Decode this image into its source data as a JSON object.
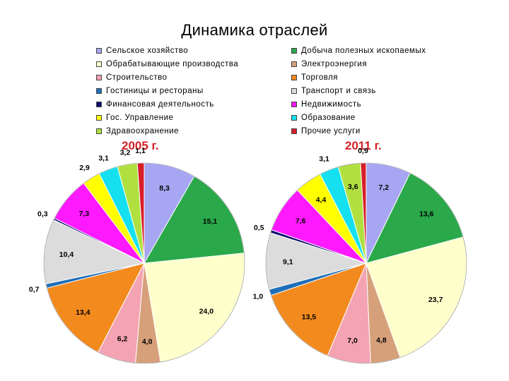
{
  "page": {
    "title": "Динамика отраслей"
  },
  "legend": [
    {
      "label": "Сельское хозяйство",
      "color": "#a6a6f2"
    },
    {
      "label": "Обрабатывающие производства",
      "color": "#ffffcc"
    },
    {
      "label": "Строительство",
      "color": "#f4a3b2"
    },
    {
      "label": "Гостиницы и рестораны",
      "color": "#1f6fb8"
    },
    {
      "label": "Финансовая деятельность",
      "color": "#0c0c70"
    },
    {
      "label": "Гос. Управление",
      "color": "#ffff00"
    },
    {
      "label": "Здравоохранение",
      "color": "#b0e040"
    },
    {
      "label": "Добыча полезных ископаемых",
      "color": "#2aa84a"
    },
    {
      "label": "Электроэнергия",
      "color": "#d6a07a"
    },
    {
      "label": "Торговля",
      "color": "#f38a1e"
    },
    {
      "label": "Транспорт и связь",
      "color": "#dcdcdc"
    },
    {
      "label": "Недвижимость",
      "color": "#ff19ff"
    },
    {
      "label": "Образование",
      "color": "#14e0ef"
    },
    {
      "label": "Прочие услуги",
      "color": "#d81e2a"
    }
  ],
  "chart_data": [
    {
      "type": "pie",
      "title": "2005 г.",
      "slices": [
        {
          "name": "Сельское хозяйство",
          "value": 8.3,
          "label": "8,3"
        },
        {
          "name": "Добыча полезных ископаемых",
          "value": 15.1,
          "label": "15,1"
        },
        {
          "name": "Обрабатывающие производства",
          "value": 24.0,
          "label": "24,0"
        },
        {
          "name": "Электроэнергия",
          "value": 4.0,
          "label": "4,0"
        },
        {
          "name": "Строительство",
          "value": 6.2,
          "label": "6,2"
        },
        {
          "name": "Торговля",
          "value": 13.4,
          "label": "13,4"
        },
        {
          "name": "Гостиницы и рестораны",
          "value": 0.7,
          "label": "0,7"
        },
        {
          "name": "Транспорт и связь",
          "value": 10.4,
          "label": "10,4"
        },
        {
          "name": "Финансовая деятельность",
          "value": 0.3,
          "label": "0,3"
        },
        {
          "name": "Недвижимость",
          "value": 7.3,
          "label": "7,3"
        },
        {
          "name": "Гос. Управление",
          "value": 2.9,
          "label": "2,9"
        },
        {
          "name": "Образование",
          "value": 3.1,
          "label": "3,1"
        },
        {
          "name": "Здравоохранение",
          "value": 3.2,
          "label": "3,2"
        },
        {
          "name": "Прочие услуги",
          "value": 1.1,
          "label": "1,1"
        }
      ]
    },
    {
      "type": "pie",
      "title": "2011 г.",
      "slices": [
        {
          "name": "Сельское хозяйство",
          "value": 7.2,
          "label": "7,2"
        },
        {
          "name": "Добыча полезных ископаемых",
          "value": 13.6,
          "label": "13,6"
        },
        {
          "name": "Обрабатывающие производства",
          "value": 23.7,
          "label": "23,7"
        },
        {
          "name": "Электроэнергия",
          "value": 4.8,
          "label": "4,8"
        },
        {
          "name": "Строительство",
          "value": 7.0,
          "label": "7,0"
        },
        {
          "name": "Торговля",
          "value": 13.5,
          "label": "13,5"
        },
        {
          "name": "Гостиницы и рестораны",
          "value": 1.0,
          "label": "1,0"
        },
        {
          "name": "Транспорт и связь",
          "value": 9.1,
          "label": "9,1"
        },
        {
          "name": "Финансовая деятельность",
          "value": 0.5,
          "label": "0,5"
        },
        {
          "name": "Недвижимость",
          "value": 7.6,
          "label": "7,6"
        },
        {
          "name": "Гос. Управление",
          "value": 4.4,
          "label": "4,4"
        },
        {
          "name": "Образование",
          "value": 3.1,
          "label": "3,1"
        },
        {
          "name": "Здравоохранение",
          "value": 3.6,
          "label": "3,6"
        },
        {
          "name": "Прочие услуги",
          "value": 0.9,
          "label": "0,9"
        }
      ]
    }
  ]
}
